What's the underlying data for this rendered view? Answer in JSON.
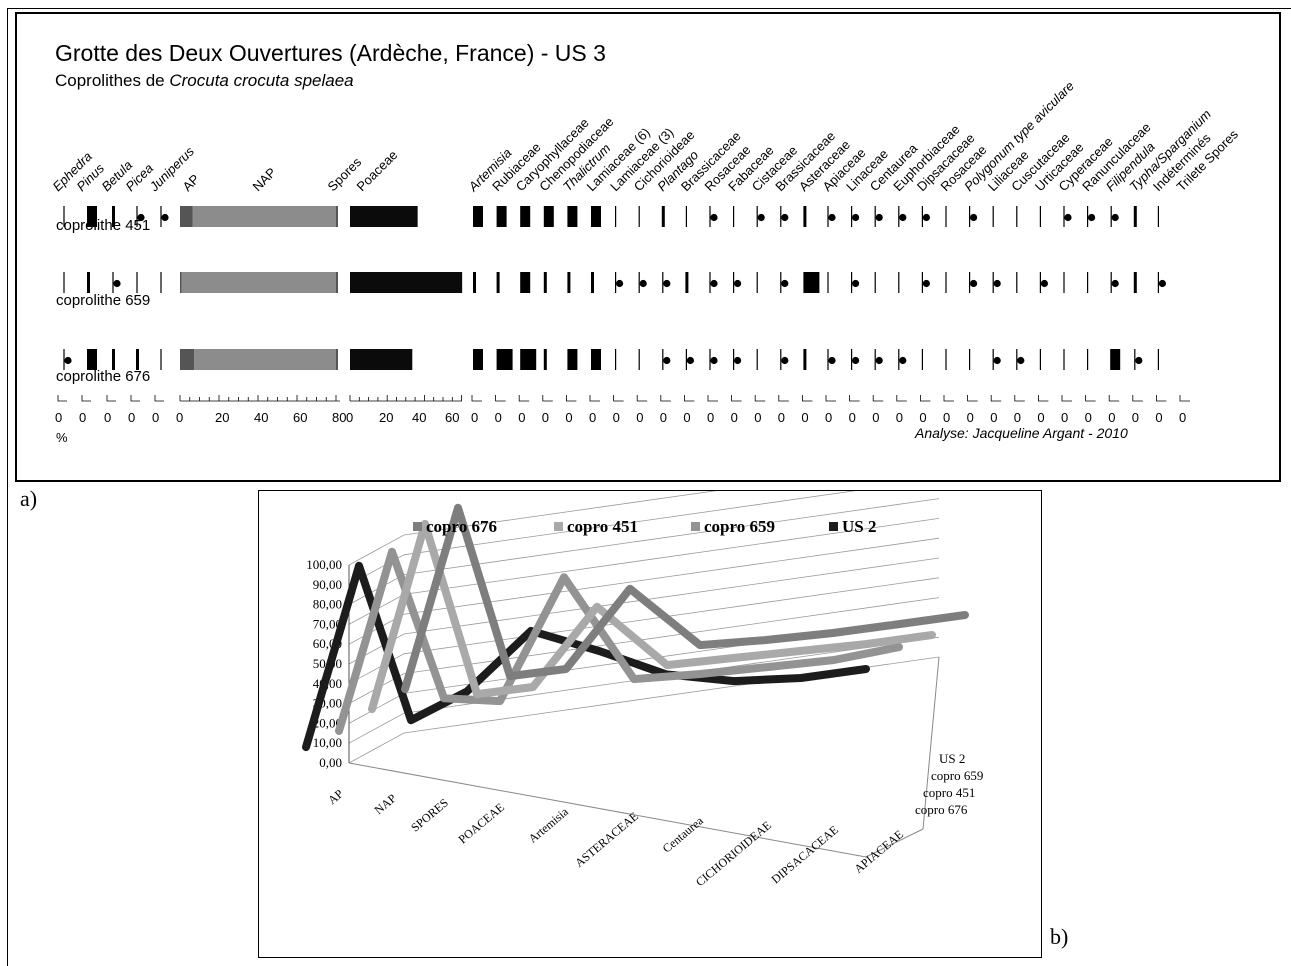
{
  "panel_a": {
    "title": "Grotte des Deux Ouvertures (Ardèche, France) - US 3",
    "subtitle_prefix": "Coprolithes de ",
    "subtitle_taxon": "Crocuta crocuta spelaea",
    "credit": "Analyse: Jacqueline Argant - 2010",
    "percent_sign": "%",
    "label": "a)"
  },
  "panel_b": {
    "label": "b)"
  },
  "chart_data": [
    {
      "type": "table",
      "title": "Grotte des Deux Ouvertures (Ardèche, France) - US 3",
      "taxa": [
        {
          "name": "Ephedra",
          "italic": true
        },
        {
          "name": "Pinus",
          "italic": true
        },
        {
          "name": "Betula",
          "italic": true
        },
        {
          "name": "Picea",
          "italic": true
        },
        {
          "name": "Juniperus",
          "italic": true
        },
        {
          "name": "AP",
          "italic": false
        },
        {
          "name": "NAP",
          "italic": false
        },
        {
          "name": "Spores",
          "italic": false
        },
        {
          "name": "Poaceae",
          "italic": false
        },
        {
          "name": "Artemisia",
          "italic": true
        },
        {
          "name": "Rubiaceae",
          "italic": false
        },
        {
          "name": "Caryophyllaceae",
          "italic": false
        },
        {
          "name": "Chenopodiaceae",
          "italic": false
        },
        {
          "name": "Thalictrum",
          "italic": true
        },
        {
          "name": "Lamiaceae (6)",
          "italic": false
        },
        {
          "name": "Lamiaceae (3)",
          "italic": false
        },
        {
          "name": "Cichorioideae",
          "italic": false
        },
        {
          "name": "Plantago",
          "italic": true
        },
        {
          "name": "Brassicaceae",
          "italic": false
        },
        {
          "name": "Rosaceae",
          "italic": false
        },
        {
          "name": "Fabaceae",
          "italic": false
        },
        {
          "name": "Cistaceae",
          "italic": false
        },
        {
          "name": "Brassicaceae",
          "italic": false
        },
        {
          "name": "Asteraceae",
          "italic": false
        },
        {
          "name": "Apiaceae",
          "italic": false
        },
        {
          "name": "Linaceae",
          "italic": false
        },
        {
          "name": "Centaurea",
          "italic": false
        },
        {
          "name": "Euphorbiaceae",
          "italic": false
        },
        {
          "name": "Dipsacaceae",
          "italic": false
        },
        {
          "name": "Rosaceae",
          "italic": false
        },
        {
          "name": "Polygonum type aviculare",
          "italic": true
        },
        {
          "name": "Liliaceae",
          "italic": false
        },
        {
          "name": "Cuscutaceae",
          "italic": false
        },
        {
          "name": "Urticaceae",
          "italic": false
        },
        {
          "name": "Cyperaceae",
          "italic": false
        },
        {
          "name": "Ranunculaceae",
          "italic": false
        },
        {
          "name": "Filipendula",
          "italic": true
        },
        {
          "name": "Typha/Sparganium",
          "italic": true
        },
        {
          "name": "Indéterminés",
          "italic": false
        },
        {
          "name": "Trilete Spores",
          "italic": false
        }
      ],
      "samples": [
        {
          "name": "coprolithe 451",
          "small": [
            [
              "l",
              0
            ],
            [
              "b",
              2
            ],
            [
              "b",
              1
            ],
            [
              "d",
              0
            ],
            [
              "d",
              0
            ]
          ],
          "ap": 8,
          "spores": 2,
          "poaceae": 38,
          "taxa": [
            [
              "b",
              2
            ],
            [
              "b",
              2
            ],
            [
              "b",
              2
            ],
            [
              "b",
              2
            ],
            [
              "b",
              2
            ],
            [
              "b",
              2
            ],
            [
              "l",
              0
            ],
            [
              "l",
              0
            ],
            [
              "b",
              1
            ],
            [
              "l",
              0
            ],
            [
              "d",
              0
            ],
            [
              "l",
              0
            ],
            [
              "d",
              0
            ],
            [
              "d",
              0
            ],
            [
              "b",
              1
            ],
            [
              "d",
              0
            ],
            [
              "d",
              0
            ],
            [
              "d",
              0
            ],
            [
              "d",
              0
            ],
            [
              "d",
              0
            ],
            [
              "l",
              0
            ],
            [
              "d",
              0
            ],
            [
              "l",
              0
            ],
            [
              "l",
              0
            ],
            [
              "l",
              0
            ],
            [
              "d",
              0
            ],
            [
              "d",
              0
            ],
            [
              "d",
              0
            ],
            [
              "b",
              1
            ],
            [
              "l",
              0
            ]
          ]
        },
        {
          "name": "coprolithe 659",
          "small": [
            [
              "l",
              0
            ],
            [
              "b",
              1
            ],
            [
              "d",
              0
            ],
            [
              "l",
              0
            ],
            [
              "l",
              0
            ]
          ],
          "ap": 1,
          "spores": 2,
          "poaceae": 63,
          "taxa": [
            [
              "b",
              1
            ],
            [
              "b",
              1
            ],
            [
              "b",
              2
            ],
            [
              "b",
              1
            ],
            [
              "b",
              1
            ],
            [
              "b",
              1
            ],
            [
              "d",
              0
            ],
            [
              "d",
              0
            ],
            [
              "d",
              0
            ],
            [
              "b",
              1
            ],
            [
              "d",
              0
            ],
            [
              "d",
              0
            ],
            [
              "l",
              0
            ],
            [
              "d",
              0
            ],
            [
              "b",
              3
            ],
            [
              "l",
              0
            ],
            [
              "d",
              0
            ],
            [
              "l",
              0
            ],
            [
              "l",
              0
            ],
            [
              "d",
              0
            ],
            [
              "l",
              0
            ],
            [
              "d",
              0
            ],
            [
              "d",
              0
            ],
            [
              "l",
              0
            ],
            [
              "d",
              0
            ],
            [
              "l",
              0
            ],
            [
              "l",
              0
            ],
            [
              "d",
              0
            ],
            [
              "b",
              1
            ],
            [
              "d",
              0
            ]
          ]
        },
        {
          "name": "coprolithe 676",
          "small": [
            [
              "d",
              0
            ],
            [
              "b",
              2
            ],
            [
              "b",
              1
            ],
            [
              "b",
              1
            ],
            [
              "l",
              0
            ]
          ],
          "ap": 9,
          "spores": 2,
          "poaceae": 35,
          "taxa": [
            [
              "b",
              2
            ],
            [
              "b",
              3
            ],
            [
              "b",
              3
            ],
            [
              "b",
              1
            ],
            [
              "b",
              2
            ],
            [
              "b",
              2
            ],
            [
              "l",
              0
            ],
            [
              "l",
              0
            ],
            [
              "d",
              0
            ],
            [
              "d",
              0
            ],
            [
              "d",
              0
            ],
            [
              "d",
              0
            ],
            [
              "l",
              0
            ],
            [
              "d",
              0
            ],
            [
              "b",
              1
            ],
            [
              "d",
              0
            ],
            [
              "d",
              0
            ],
            [
              "d",
              0
            ],
            [
              "d",
              0
            ],
            [
              "l",
              0
            ],
            [
              "l",
              0
            ],
            [
              "l",
              0
            ],
            [
              "d",
              0
            ],
            [
              "d",
              0
            ],
            [
              "l",
              0
            ],
            [
              "l",
              0
            ],
            [
              "l",
              0
            ],
            [
              "b",
              2
            ],
            [
              "d",
              0
            ],
            [
              "l",
              0
            ]
          ]
        }
      ],
      "scale_ticks": {
        "small": [
          "0",
          "0",
          "0",
          "0",
          "0"
        ],
        "percent": [
          "0",
          "20",
          "40",
          "60",
          "80"
        ],
        "poaceae": [
          "0",
          "20",
          "40",
          "60"
        ],
        "taxa_zero": "0"
      }
    },
    {
      "type": "line",
      "style": "3d",
      "categories": [
        "AP",
        "NAP",
        "SPORES",
        "POACEAE",
        "Artemisia",
        "ASTERACEAE",
        "Centaurea",
        "CICHORIOIDEAE",
        "DIPSACACEAE",
        "APIACEAE"
      ],
      "ylim": [
        0,
        100
      ],
      "yticks": [
        "0,00",
        "10,00",
        "20,00",
        "30,00",
        "40,00",
        "50,00",
        "60,00",
        "70,00",
        "80,00",
        "90,00",
        "100,00"
      ],
      "series": [
        {
          "name": "copro 676",
          "color": "#7e7e7e",
          "values": [
            5,
            92,
            3,
            2,
            38,
            5,
            3,
            2,
            2,
            2
          ]
        },
        {
          "name": "copro 451",
          "color": "#a9a9a9",
          "values": [
            4,
            93,
            3,
            2,
            38,
            4,
            3,
            2,
            1,
            1
          ]
        },
        {
          "name": "copro 659",
          "color": "#939393",
          "values": [
            2,
            88,
            10,
            4,
            62,
            6,
            4,
            3,
            2,
            4
          ]
        },
        {
          "name": "US 2",
          "color": "#1c1c1c",
          "values": [
            3,
            90,
            8,
            18,
            44,
            29,
            13,
            5,
            2,
            2
          ]
        }
      ],
      "depth_labels": [
        "US 2",
        "copro 659",
        "copro 451",
        "copro 676"
      ],
      "legend_position": "top"
    }
  ]
}
